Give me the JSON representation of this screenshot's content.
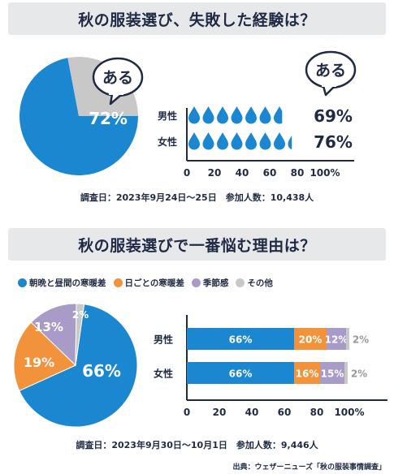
{
  "titles": {
    "section1": "秋の服装選び、失敗した経験は？",
    "section2": "秋の服装選びで一番悩む理由は？"
  },
  "colors": {
    "blue": "#1b87d1",
    "gray": "#c8c8c8",
    "orange": "#f2923a",
    "purple": "#a99bc8",
    "text": "#1f2a44"
  },
  "icons": [
    "water-drop-icon",
    "speech-bubble-icon"
  ],
  "survey1": "調査日：2023年9月24日～25日　参加人数：10,438人",
  "survey2": "調査日：2023年9月30日～10月1日　参加人数：9,446人",
  "source": "出典：ウェザーニューズ「秋の服装事情調査」",
  "chart_data": [
    {
      "type": "pie",
      "labels": [
        "ある",
        ""
      ],
      "values": [
        72,
        28
      ],
      "data_labels": [
        "72%"
      ],
      "callout": "ある",
      "colors": [
        "#1b87d1",
        "#c8c8c8"
      ]
    },
    {
      "type": "bar",
      "orientation": "horizontal",
      "style": "pictogram",
      "callout": "ある",
      "categories": [
        "男性",
        "女性"
      ],
      "values": [
        69,
        76
      ],
      "data_labels": [
        "69%",
        "76%"
      ],
      "xlim": [
        0,
        100
      ],
      "xticks": [
        "0",
        "20",
        "40",
        "60",
        "80",
        "100%"
      ]
    },
    {
      "type": "pie",
      "labels": [
        "朝晩と昼間の寒暖差",
        "日ごとの寒暖差",
        "季節感",
        "その他"
      ],
      "values": [
        66,
        19,
        13,
        2
      ],
      "data_labels": [
        "66%",
        "19%",
        "13%",
        "2%"
      ],
      "colors": [
        "#1b87d1",
        "#f2923a",
        "#a99bc8",
        "#c8c8c8"
      ]
    },
    {
      "type": "bar",
      "orientation": "horizontal",
      "stacked": true,
      "categories": [
        "男性",
        "女性"
      ],
      "series": [
        {
          "name": "朝晩と昼間の寒暖差",
          "values": [
            66,
            66
          ],
          "labels": [
            "66%",
            "66%"
          ]
        },
        {
          "name": "日ごとの寒暖差",
          "values": [
            20,
            16
          ],
          "labels": [
            "20%",
            "16%"
          ]
        },
        {
          "name": "季節感",
          "values": [
            12,
            15
          ],
          "labels": [
            "12%",
            "15%"
          ]
        },
        {
          "name": "その他",
          "values": [
            2,
            2
          ],
          "labels": [
            "2%",
            "2%"
          ]
        }
      ],
      "xlim": [
        0,
        100
      ],
      "xticks": [
        "0",
        "20",
        "40",
        "60",
        "80",
        "100%"
      ],
      "legend": "top"
    }
  ]
}
